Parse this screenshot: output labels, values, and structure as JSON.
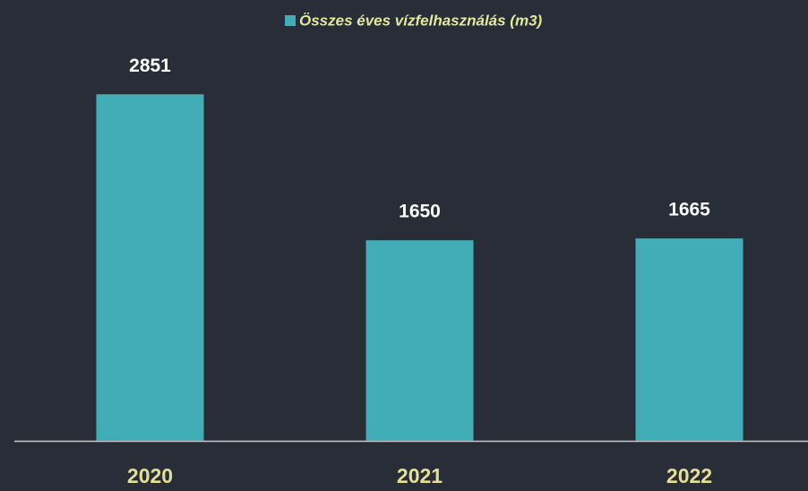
{
  "chart_data": {
    "type": "bar",
    "categories": [
      "2020",
      "2021",
      "2022"
    ],
    "series": [
      {
        "name": "Összes éves vízfelhasználás (m3)",
        "color": "#42adb6",
        "values": [
          2851,
          1650,
          1665
        ]
      }
    ],
    "ylim": [
      0,
      3000
    ],
    "legend": "top"
  }
}
